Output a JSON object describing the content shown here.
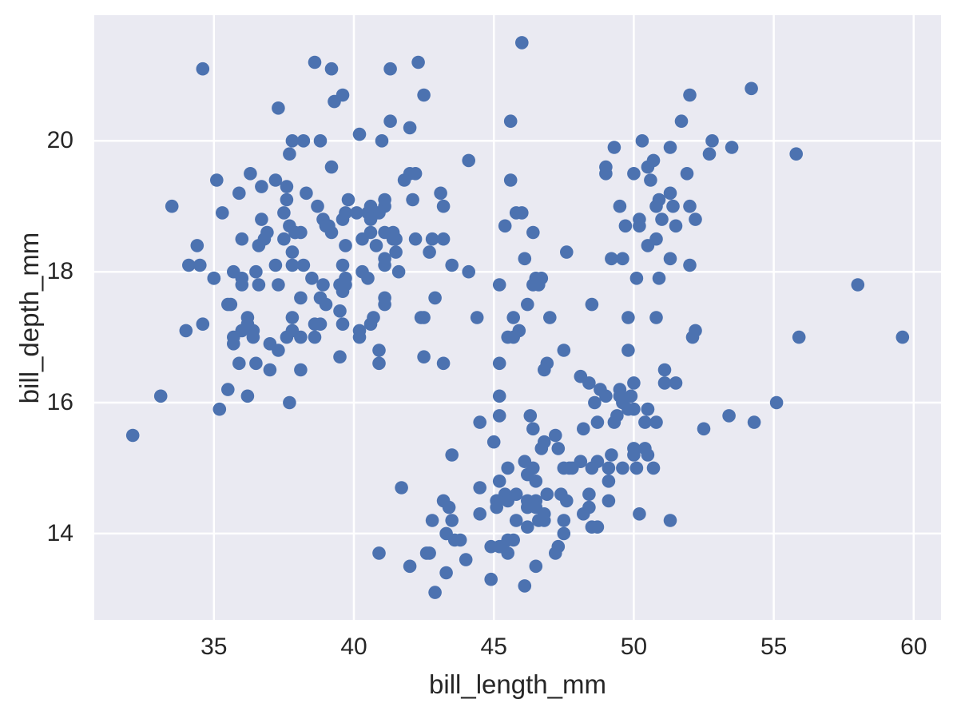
{
  "chart_data": {
    "type": "scatter",
    "title": "",
    "xlabel": "bill_length_mm",
    "ylabel": "bill_depth_mm",
    "xlim": [
      30.725,
      60.975
    ],
    "ylim": [
      12.68,
      21.92
    ],
    "xticks": [
      35,
      40,
      45,
      50,
      55,
      60
    ],
    "yticks": [
      14,
      16,
      18,
      20
    ],
    "grid": true,
    "legend": "none",
    "n_points": 342,
    "style": {
      "plot_background": "#EAEAF2",
      "figure_background": "#FFFFFF",
      "grid_color": "#FFFFFF",
      "point_color": "#4C72B0",
      "text_color": "#262626",
      "point_radius": 8.3,
      "grid_width": 2.5
    },
    "points": [
      [
        39.1,
        18.7
      ],
      [
        39.5,
        17.4
      ],
      [
        40.3,
        18.0
      ],
      [
        36.7,
        19.3
      ],
      [
        39.3,
        20.6
      ],
      [
        38.9,
        17.8
      ],
      [
        39.2,
        19.6
      ],
      [
        34.1,
        18.1
      ],
      [
        42.0,
        20.2
      ],
      [
        37.8,
        17.1
      ],
      [
        37.8,
        17.3
      ],
      [
        41.1,
        17.6
      ],
      [
        38.6,
        21.2
      ],
      [
        34.6,
        21.1
      ],
      [
        36.6,
        17.8
      ],
      [
        38.7,
        19.0
      ],
      [
        42.5,
        20.7
      ],
      [
        34.4,
        18.4
      ],
      [
        46.0,
        21.5
      ],
      [
        37.8,
        18.3
      ],
      [
        37.7,
        18.7
      ],
      [
        35.9,
        19.2
      ],
      [
        38.2,
        18.1
      ],
      [
        38.8,
        17.2
      ],
      [
        35.3,
        18.9
      ],
      [
        40.6,
        18.6
      ],
      [
        40.5,
        17.9
      ],
      [
        37.9,
        18.6
      ],
      [
        40.5,
        18.9
      ],
      [
        39.5,
        16.7
      ],
      [
        37.2,
        18.1
      ],
      [
        39.5,
        17.8
      ],
      [
        40.9,
        18.9
      ],
      [
        36.4,
        17.0
      ],
      [
        39.2,
        21.1
      ],
      [
        38.8,
        20.0
      ],
      [
        42.2,
        18.5
      ],
      [
        37.6,
        19.3
      ],
      [
        39.8,
        19.1
      ],
      [
        36.5,
        18.0
      ],
      [
        40.8,
        18.4
      ],
      [
        36.0,
        18.5
      ],
      [
        44.1,
        19.7
      ],
      [
        37.0,
        16.9
      ],
      [
        39.6,
        18.8
      ],
      [
        41.1,
        19.0
      ],
      [
        37.5,
        18.9
      ],
      [
        36.0,
        17.9
      ],
      [
        42.3,
        21.2
      ],
      [
        39.6,
        17.7
      ],
      [
        40.1,
        18.9
      ],
      [
        35.0,
        17.9
      ],
      [
        42.0,
        19.5
      ],
      [
        34.5,
        18.1
      ],
      [
        41.4,
        18.6
      ],
      [
        39.0,
        17.5
      ],
      [
        40.6,
        18.8
      ],
      [
        36.5,
        16.6
      ],
      [
        37.6,
        19.1
      ],
      [
        35.7,
        16.9
      ],
      [
        41.3,
        21.1
      ],
      [
        37.6,
        17.0
      ],
      [
        41.1,
        18.2
      ],
      [
        36.4,
        17.1
      ],
      [
        41.6,
        18.0
      ],
      [
        35.5,
        16.2
      ],
      [
        41.1,
        19.1
      ],
      [
        35.9,
        16.6
      ],
      [
        41.8,
        19.4
      ],
      [
        33.5,
        19.0
      ],
      [
        39.7,
        18.4
      ],
      [
        39.6,
        17.2
      ],
      [
        45.8,
        18.9
      ],
      [
        35.5,
        17.5
      ],
      [
        42.8,
        18.5
      ],
      [
        40.9,
        16.8
      ],
      [
        37.2,
        19.4
      ],
      [
        36.2,
        16.1
      ],
      [
        42.1,
        19.1
      ],
      [
        34.6,
        17.2
      ],
      [
        42.9,
        17.6
      ],
      [
        36.7,
        18.8
      ],
      [
        35.1,
        19.4
      ],
      [
        37.3,
        17.8
      ],
      [
        41.3,
        20.3
      ],
      [
        36.3,
        19.5
      ],
      [
        36.9,
        18.6
      ],
      [
        38.3,
        19.2
      ],
      [
        38.9,
        18.8
      ],
      [
        35.7,
        18.0
      ],
      [
        41.1,
        18.1
      ],
      [
        34.0,
        17.1
      ],
      [
        39.6,
        18.1
      ],
      [
        36.2,
        17.3
      ],
      [
        40.8,
        18.9
      ],
      [
        38.1,
        18.6
      ],
      [
        40.3,
        18.5
      ],
      [
        33.1,
        16.1
      ],
      [
        43.2,
        18.5
      ],
      [
        35.0,
        17.9
      ],
      [
        41.0,
        20.0
      ],
      [
        37.7,
        16.0
      ],
      [
        37.8,
        20.0
      ],
      [
        37.9,
        18.6
      ],
      [
        39.7,
        18.9
      ],
      [
        38.6,
        17.2
      ],
      [
        38.2,
        20.0
      ],
      [
        38.1,
        17.0
      ],
      [
        43.2,
        19.0
      ],
      [
        38.1,
        16.5
      ],
      [
        45.6,
        20.3
      ],
      [
        39.7,
        17.8
      ],
      [
        42.2,
        19.5
      ],
      [
        39.6,
        20.7
      ],
      [
        42.7,
        18.3
      ],
      [
        38.6,
        17.0
      ],
      [
        37.3,
        20.5
      ],
      [
        35.7,
        17.0
      ],
      [
        41.1,
        18.6
      ],
      [
        36.2,
        17.2
      ],
      [
        37.7,
        19.8
      ],
      [
        40.2,
        17.0
      ],
      [
        41.4,
        18.5
      ],
      [
        35.2,
        15.9
      ],
      [
        40.6,
        19.0
      ],
      [
        38.8,
        17.6
      ],
      [
        41.5,
        18.3
      ],
      [
        39.0,
        18.7
      ],
      [
        44.1,
        18.0
      ],
      [
        38.5,
        17.9
      ],
      [
        43.1,
        19.2
      ],
      [
        36.8,
        18.5
      ],
      [
        37.5,
        18.5
      ],
      [
        38.1,
        17.6
      ],
      [
        41.1,
        17.5
      ],
      [
        35.6,
        17.5
      ],
      [
        40.2,
        20.1
      ],
      [
        37.0,
        16.5
      ],
      [
        39.7,
        17.9
      ],
      [
        40.2,
        17.1
      ],
      [
        40.6,
        17.2
      ],
      [
        32.1,
        15.5
      ],
      [
        40.7,
        17.3
      ],
      [
        37.3,
        16.8
      ],
      [
        39.0,
        18.7
      ],
      [
        39.2,
        18.6
      ],
      [
        36.6,
        18.4
      ],
      [
        36.0,
        17.8
      ],
      [
        37.8,
        18.1
      ],
      [
        36.0,
        17.1
      ],
      [
        41.5,
        18.5
      ],
      [
        46.5,
        17.9
      ],
      [
        50.0,
        19.5
      ],
      [
        51.3,
        19.2
      ],
      [
        45.4,
        18.7
      ],
      [
        52.7,
        19.8
      ],
      [
        45.2,
        17.8
      ],
      [
        46.1,
        18.2
      ],
      [
        51.3,
        18.2
      ],
      [
        46.0,
        18.9
      ],
      [
        51.3,
        19.9
      ],
      [
        46.6,
        17.8
      ],
      [
        51.7,
        20.3
      ],
      [
        47.0,
        17.3
      ],
      [
        52.0,
        18.1
      ],
      [
        45.9,
        17.1
      ],
      [
        50.5,
        19.6
      ],
      [
        50.3,
        20.0
      ],
      [
        58.0,
        17.8
      ],
      [
        46.4,
        18.6
      ],
      [
        49.2,
        18.2
      ],
      [
        42.4,
        17.3
      ],
      [
        48.5,
        17.5
      ],
      [
        43.2,
        16.6
      ],
      [
        50.6,
        19.4
      ],
      [
        46.7,
        17.9
      ],
      [
        52.0,
        19.0
      ],
      [
        50.5,
        18.4
      ],
      [
        49.5,
        19.0
      ],
      [
        46.4,
        17.8
      ],
      [
        52.8,
        20.0
      ],
      [
        40.9,
        16.6
      ],
      [
        54.2,
        20.8
      ],
      [
        42.5,
        16.7
      ],
      [
        51.0,
        18.8
      ],
      [
        49.7,
        18.7
      ],
      [
        47.5,
        16.8
      ],
      [
        47.6,
        18.3
      ],
      [
        52.0,
        20.7
      ],
      [
        46.9,
        16.6
      ],
      [
        53.5,
        19.9
      ],
      [
        49.0,
        19.5
      ],
      [
        46.2,
        17.5
      ],
      [
        50.9,
        19.1
      ],
      [
        45.5,
        17.0
      ],
      [
        50.9,
        17.9
      ],
      [
        50.8,
        18.5
      ],
      [
        50.1,
        17.9
      ],
      [
        49.0,
        19.6
      ],
      [
        51.5,
        18.7
      ],
      [
        49.8,
        17.3
      ],
      [
        48.1,
        16.4
      ],
      [
        51.4,
        19.0
      ],
      [
        45.7,
        17.3
      ],
      [
        50.7,
        19.7
      ],
      [
        42.5,
        17.3
      ],
      [
        52.2,
        18.8
      ],
      [
        45.2,
        16.6
      ],
      [
        49.3,
        19.9
      ],
      [
        50.2,
        18.8
      ],
      [
        45.6,
        19.4
      ],
      [
        51.9,
        19.5
      ],
      [
        46.8,
        16.5
      ],
      [
        45.7,
        17.0
      ],
      [
        55.8,
        19.8
      ],
      [
        43.5,
        18.1
      ],
      [
        49.6,
        18.2
      ],
      [
        50.8,
        19.0
      ],
      [
        50.2,
        18.7
      ],
      [
        46.1,
        13.2
      ],
      [
        50.0,
        16.3
      ],
      [
        48.7,
        14.1
      ],
      [
        50.0,
        15.2
      ],
      [
        47.6,
        14.5
      ],
      [
        46.5,
        13.5
      ],
      [
        45.4,
        14.6
      ],
      [
        46.7,
        15.3
      ],
      [
        43.3,
        13.4
      ],
      [
        46.8,
        15.4
      ],
      [
        40.9,
        13.7
      ],
      [
        49.0,
        16.1
      ],
      [
        45.5,
        13.7
      ],
      [
        48.4,
        14.6
      ],
      [
        45.8,
        14.6
      ],
      [
        49.3,
        15.7
      ],
      [
        42.0,
        13.5
      ],
      [
        49.2,
        15.2
      ],
      [
        46.2,
        14.5
      ],
      [
        48.7,
        15.1
      ],
      [
        50.2,
        14.3
      ],
      [
        45.1,
        14.5
      ],
      [
        46.5,
        14.5
      ],
      [
        46.3,
        15.8
      ],
      [
        42.9,
        13.1
      ],
      [
        46.1,
        15.1
      ],
      [
        44.5,
        14.3
      ],
      [
        47.8,
        15.0
      ],
      [
        48.2,
        14.3
      ],
      [
        50.0,
        15.3
      ],
      [
        47.3,
        15.3
      ],
      [
        42.8,
        14.2
      ],
      [
        45.1,
        14.5
      ],
      [
        59.6,
        17.0
      ],
      [
        49.1,
        14.8
      ],
      [
        48.4,
        16.3
      ],
      [
        42.6,
        13.7
      ],
      [
        44.4,
        17.3
      ],
      [
        44.0,
        13.6
      ],
      [
        48.7,
        15.7
      ],
      [
        42.7,
        13.7
      ],
      [
        49.6,
        16.0
      ],
      [
        45.3,
        13.8
      ],
      [
        49.6,
        15.0
      ],
      [
        50.5,
        15.9
      ],
      [
        43.6,
        13.9
      ],
      [
        45.5,
        13.9
      ],
      [
        50.5,
        15.9
      ],
      [
        44.9,
        13.3
      ],
      [
        45.2,
        15.8
      ],
      [
        46.6,
        14.2
      ],
      [
        48.5,
        14.1
      ],
      [
        45.1,
        14.4
      ],
      [
        50.1,
        15.0
      ],
      [
        46.5,
        14.4
      ],
      [
        45.0,
        15.4
      ],
      [
        43.8,
        13.9
      ],
      [
        45.5,
        15.0
      ],
      [
        43.2,
        14.5
      ],
      [
        50.4,
        15.3
      ],
      [
        45.3,
        13.8
      ],
      [
        46.2,
        14.9
      ],
      [
        45.7,
        13.9
      ],
      [
        54.3,
        15.7
      ],
      [
        45.8,
        14.2
      ],
      [
        49.8,
        16.8
      ],
      [
        46.2,
        14.4
      ],
      [
        49.5,
        16.2
      ],
      [
        43.5,
        14.2
      ],
      [
        50.7,
        15.0
      ],
      [
        47.7,
        15.0
      ],
      [
        46.4,
        15.6
      ],
      [
        48.2,
        15.6
      ],
      [
        46.5,
        14.8
      ],
      [
        46.4,
        15.0
      ],
      [
        48.6,
        16.0
      ],
      [
        47.5,
        14.2
      ],
      [
        51.1,
        16.3
      ],
      [
        45.2,
        13.8
      ],
      [
        45.2,
        16.1
      ],
      [
        49.1,
        14.5
      ],
      [
        52.5,
        15.6
      ],
      [
        47.4,
        14.6
      ],
      [
        50.0,
        15.9
      ],
      [
        44.9,
        13.8
      ],
      [
        50.8,
        17.3
      ],
      [
        43.4,
        14.4
      ],
      [
        51.3,
        14.2
      ],
      [
        47.5,
        14.0
      ],
      [
        52.1,
        17.0
      ],
      [
        47.5,
        15.0
      ],
      [
        52.2,
        17.1
      ],
      [
        45.5,
        14.5
      ],
      [
        49.5,
        16.1
      ],
      [
        44.5,
        14.7
      ],
      [
        50.8,
        15.7
      ],
      [
        49.4,
        15.8
      ],
      [
        46.9,
        14.6
      ],
      [
        48.4,
        14.4
      ],
      [
        51.1,
        16.5
      ],
      [
        48.5,
        15.0
      ],
      [
        55.9,
        17.0
      ],
      [
        47.2,
        15.5
      ],
      [
        49.1,
        15.0
      ],
      [
        47.3,
        13.8
      ],
      [
        46.8,
        14.2
      ],
      [
        41.7,
        14.7
      ],
      [
        53.4,
        15.8
      ],
      [
        43.3,
        14.0
      ],
      [
        48.1,
        15.1
      ],
      [
        50.5,
        15.2
      ],
      [
        49.8,
        15.9
      ],
      [
        43.5,
        15.2
      ],
      [
        51.5,
        16.3
      ],
      [
        46.2,
        14.1
      ],
      [
        55.1,
        16.0
      ],
      [
        44.5,
        15.7
      ],
      [
        48.8,
        16.2
      ],
      [
        47.2,
        13.7
      ],
      [
        46.8,
        14.3
      ],
      [
        50.4,
        15.7
      ],
      [
        45.2,
        14.8
      ],
      [
        49.9,
        16.1
      ]
    ]
  }
}
